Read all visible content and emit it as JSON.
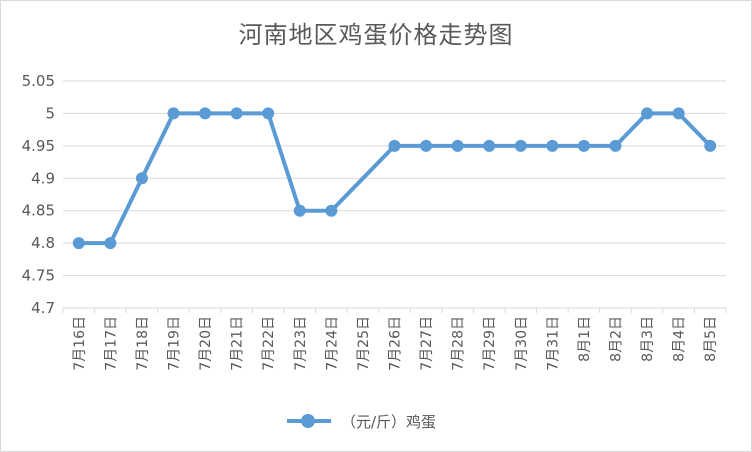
{
  "chart_data": {
    "type": "line",
    "title": "河南地区鸡蛋价格走势图",
    "categories": [
      "7月16日",
      "7月17日",
      "7月18日",
      "7月19日",
      "7月20日",
      "7月21日",
      "7月22日",
      "7月23日",
      "7月24日",
      "7月25日",
      "7月26日",
      "7月27日",
      "7月28日",
      "7月29日",
      "7月30日",
      "7月31日",
      "8月1日",
      "8月2日",
      "8月3日",
      "8月4日",
      "8月5日"
    ],
    "series": [
      {
        "name": "（元/斤）鸡蛋",
        "values": [
          4.8,
          4.8,
          4.9,
          5.0,
          5.0,
          5.0,
          5.0,
          4.85,
          4.85,
          null,
          4.95,
          4.95,
          4.95,
          4.95,
          4.95,
          4.95,
          4.95,
          4.95,
          5.0,
          5.0,
          4.95
        ],
        "color": "#5b9bd5"
      }
    ],
    "ylim": [
      4.7,
      5.05
    ],
    "yticks": [
      "4.7",
      "4.75",
      "4.8",
      "4.85",
      "4.9",
      "4.95",
      "5",
      "5.05"
    ],
    "xlabel": "",
    "ylabel": "",
    "grid": true,
    "legend": "bottom"
  },
  "colors": {
    "series": "#5b9bd5",
    "grid": "#d9d9d9",
    "text": "#595959"
  }
}
